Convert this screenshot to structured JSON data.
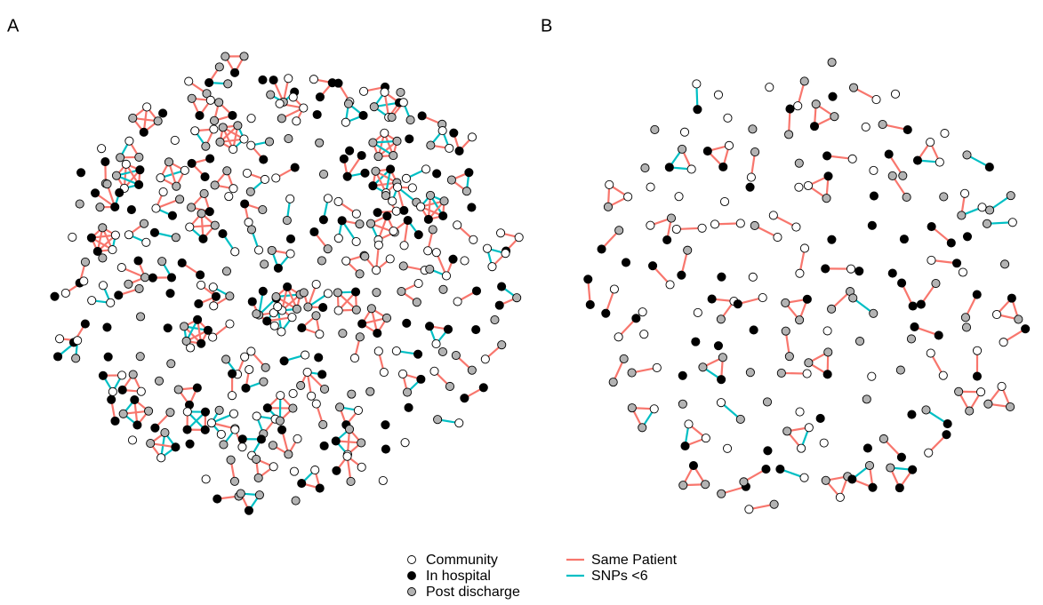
{
  "panels": [
    {
      "label": "A"
    },
    {
      "label": "B"
    }
  ],
  "legend": {
    "nodes": [
      "Community",
      "In hospital",
      "Post discharge"
    ],
    "edges": [
      "Same Patient",
      "SNPs <6"
    ]
  }
}
